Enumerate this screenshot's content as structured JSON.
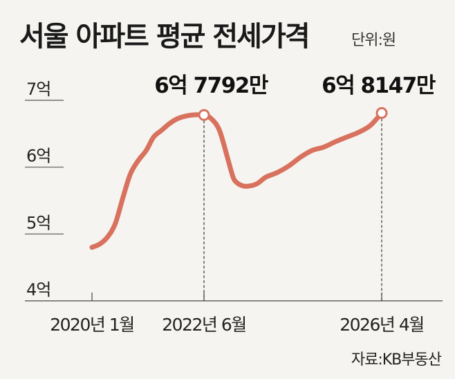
{
  "header": {
    "title": "서울 아파트 평균 전세가격",
    "unit": "단위:원"
  },
  "source": "자료:KB부동산",
  "chart_data": {
    "type": "line",
    "title": "서울 아파트 평균 전세가격",
    "xlabel": "",
    "ylabel": "",
    "ylim": [
      4,
      7
    ],
    "y_ticks": [
      {
        "value": 7,
        "label": "7억"
      },
      {
        "value": 6,
        "label": "6억"
      },
      {
        "value": 5,
        "label": "5억"
      },
      {
        "value": 4,
        "label": "4억"
      }
    ],
    "x_ticks": [
      {
        "x": 2020.0,
        "label": "2020년 1월"
      },
      {
        "x": 2022.417,
        "label": "2022년 6월"
      },
      {
        "x": 2026.25,
        "label": "2026년 4월"
      }
    ],
    "xlim": [
      2020.0,
      2026.25
    ],
    "grid": false,
    "series": [
      {
        "color": "#d8715d",
        "points": [
          [
            2020.0,
            4.8
          ],
          [
            2020.17,
            4.85
          ],
          [
            2020.33,
            4.95
          ],
          [
            2020.5,
            5.15
          ],
          [
            2020.67,
            5.55
          ],
          [
            2020.83,
            5.9
          ],
          [
            2021.0,
            6.1
          ],
          [
            2021.17,
            6.25
          ],
          [
            2021.33,
            6.45
          ],
          [
            2021.5,
            6.55
          ],
          [
            2021.67,
            6.65
          ],
          [
            2021.83,
            6.72
          ],
          [
            2022.0,
            6.76
          ],
          [
            2022.17,
            6.78
          ],
          [
            2022.417,
            6.78
          ],
          [
            2022.58,
            6.72
          ],
          [
            2022.75,
            6.55
          ],
          [
            2022.92,
            6.15
          ],
          [
            2023.0,
            5.95
          ],
          [
            2023.08,
            5.8
          ],
          [
            2023.25,
            5.72
          ],
          [
            2023.42,
            5.72
          ],
          [
            2023.58,
            5.76
          ],
          [
            2023.75,
            5.85
          ],
          [
            2024.0,
            5.92
          ],
          [
            2024.25,
            6.02
          ],
          [
            2024.5,
            6.15
          ],
          [
            2024.75,
            6.25
          ],
          [
            2025.0,
            6.3
          ],
          [
            2025.25,
            6.38
          ],
          [
            2025.5,
            6.45
          ],
          [
            2025.75,
            6.52
          ],
          [
            2026.0,
            6.62
          ],
          [
            2026.25,
            6.81
          ]
        ]
      }
    ],
    "annotations": [
      {
        "x": 2022.417,
        "y": 6.78,
        "label": "6억 7792만"
      },
      {
        "x": 2026.25,
        "y": 6.81,
        "label": "6억 8147만"
      }
    ]
  }
}
